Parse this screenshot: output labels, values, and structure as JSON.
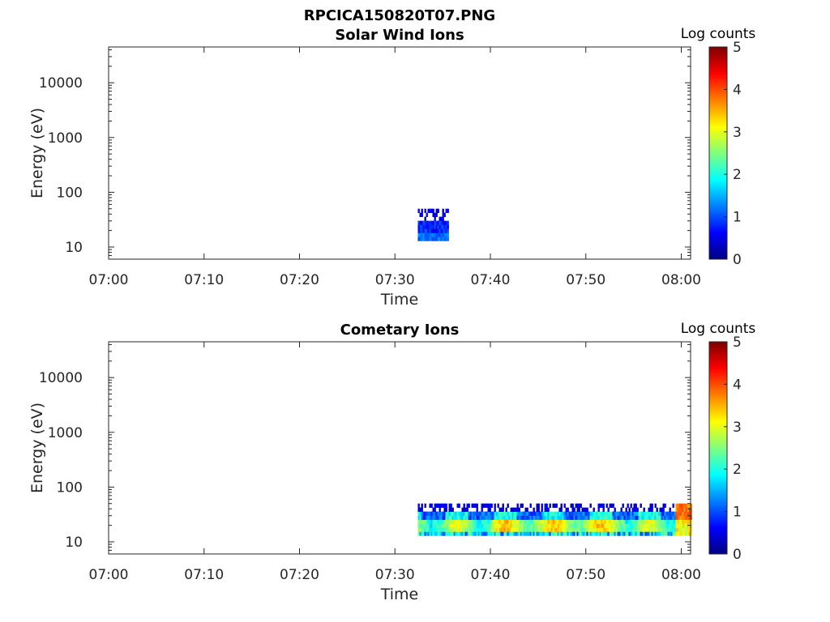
{
  "figure": {
    "title": "RPCICA150820T07.PNG"
  },
  "colorbar_stops": [
    "#00007f",
    "#0000ff",
    "#007fff",
    "#00ffff",
    "#7fff7f",
    "#ffff00",
    "#ff7f00",
    "#ff0000",
    "#7f0000"
  ],
  "chart_data": [
    {
      "type": "heatmap",
      "title": "Solar Wind Ions",
      "xlabel": "Time",
      "ylabel": "Energy (eV)",
      "x_ticks": [
        "07:00",
        "07:10",
        "07:20",
        "07:30",
        "07:40",
        "07:50",
        "08:00"
      ],
      "y_ticks": [
        "10",
        "100",
        "1000",
        "10000"
      ],
      "y_scale": "log",
      "y_range": [
        6,
        45000
      ],
      "x_range_minutes": [
        0,
        61
      ],
      "colorbar": {
        "label": "Log counts",
        "range": [
          0,
          5
        ],
        "ticks": [
          "0",
          "1",
          "2",
          "3",
          "4",
          "5"
        ],
        "colormap": "jet"
      },
      "blocks": [
        {
          "t_start": 32.4,
          "t_end": 35.5,
          "e_low": 13,
          "e_high": 50,
          "pattern": "solar"
        }
      ]
    },
    {
      "type": "heatmap",
      "title": "Cometary Ions",
      "xlabel": "Time",
      "ylabel": "Energy (eV)",
      "x_ticks": [
        "07:00",
        "07:10",
        "07:20",
        "07:30",
        "07:40",
        "07:50",
        "08:00"
      ],
      "y_ticks": [
        "10",
        "100",
        "1000",
        "10000"
      ],
      "y_scale": "log",
      "y_range": [
        6,
        45000
      ],
      "x_range_minutes": [
        0,
        61
      ],
      "colorbar": {
        "label": "Log counts",
        "range": [
          0,
          5
        ],
        "ticks": [
          "0",
          "1",
          "2",
          "3",
          "4",
          "5"
        ],
        "colormap": "jet"
      },
      "blocks": [
        {
          "t_start": 32.4,
          "t_end": 61.0,
          "e_low": 13,
          "e_high": 50,
          "pattern": "cometary"
        }
      ]
    }
  ]
}
